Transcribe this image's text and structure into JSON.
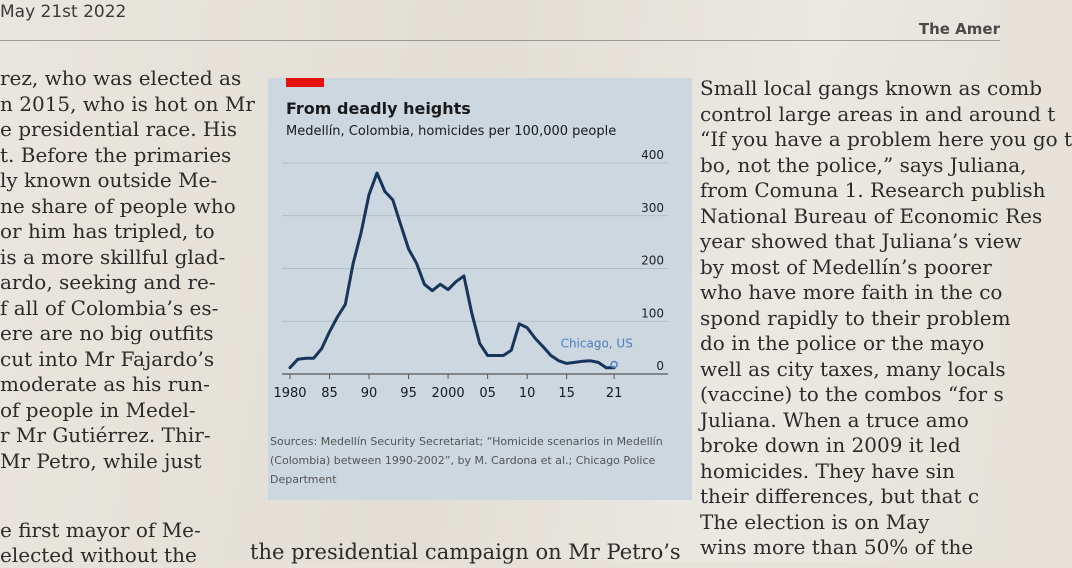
{
  "header": {
    "date": "May 21st 2022",
    "section": "The Amer"
  },
  "left_column": [
    "rez, who was elected as",
    "n 2015, who is hot on Mr",
    "e presidential race. His",
    "t. Before the primaries",
    "ly known outside Me-",
    "ne share of people who",
    "or him has tripled, to",
    "is a more skillful glad-",
    "ardo, seeking and re-",
    "f all of Colombia’s es-",
    "ere are no big outfits",
    "cut into Mr Fajardo’s",
    "moderate as his run-",
    "of people in Medel-",
    "r Mr Gutiérrez. Thir-",
    "Mr Petro, while just"
  ],
  "left_bottom": [
    "e first mayor of Me-",
    "elected without the"
  ],
  "middle_bottom": "the presidential campaign on Mr Petro’s",
  "right_column": [
    "Small local gangs known as comb",
    "control large areas in and around t",
    "“If you have a problem here you go t",
    "bo, not the police,” says Juliana,",
    "from Comuna 1. Research publish",
    "National Bureau of Economic Res",
    "year showed that Juliana’s view",
    "by most of Medellín’s poorer",
    "who have more faith in the co",
    "spond rapidly to their problem",
    "do in the police or the mayo",
    "well as city taxes, many locals",
    "(vaccine) to the combos “for s",
    "Juliana. When a truce amo",
    "broke down in 2009 it led",
    "homicides. They have sin",
    "their differences, but that c",
    "The election is on May",
    "wins more than 50% of the"
  ],
  "chart_data": {
    "type": "line",
    "title": "From deadly heights",
    "subtitle": "Medellín, Colombia, homicides per 100,000 people",
    "xlabel": "",
    "ylabel": "",
    "xlim": [
      1980,
      2022
    ],
    "ylim": [
      0,
      400
    ],
    "y_ticks": [
      0,
      100,
      200,
      300,
      400
    ],
    "x_ticks": [
      {
        "value": 1980,
        "label": "1980"
      },
      {
        "value": 1985,
        "label": "85"
      },
      {
        "value": 1990,
        "label": "90"
      },
      {
        "value": 1995,
        "label": "95"
      },
      {
        "value": 2000,
        "label": "2000"
      },
      {
        "value": 2005,
        "label": "05"
      },
      {
        "value": 2010,
        "label": "10"
      },
      {
        "value": 2015,
        "label": "15"
      },
      {
        "value": 2021,
        "label": "21"
      }
    ],
    "grid": "horizontal",
    "series": [
      {
        "name": "",
        "color": "#17345c",
        "x": [
          1980,
          1981,
          1982,
          1983,
          1984,
          1985,
          1986,
          1987,
          1988,
          1989,
          1990,
          1991,
          1992,
          1993,
          1994,
          1995,
          1996,
          1997,
          1998,
          1999,
          2000,
          2001,
          2002,
          2003,
          2004,
          2005,
          2006,
          2007,
          2008,
          2009,
          2010,
          2011,
          2012,
          2013,
          2014,
          2015,
          2016,
          2017,
          2018,
          2019,
          2020,
          2021
        ],
        "y": [
          12,
          28,
          30,
          30,
          48,
          80,
          108,
          132,
          210,
          268,
          340,
          381,
          346,
          330,
          283,
          237,
          210,
          170,
          158,
          170,
          160,
          175,
          186,
          115,
          58,
          35,
          35,
          35,
          45,
          95,
          88,
          68,
          52,
          35,
          25,
          20,
          22,
          24,
          25,
          22,
          12,
          12
        ]
      },
      {
        "name": "Chicago, US",
        "color": "#4d7fc0",
        "x": [
          2021
        ],
        "y": [
          18
        ]
      }
    ],
    "annotations": [
      {
        "text": "Chicago, US",
        "x": 2016,
        "y": 60
      }
    ],
    "source": "Sources: Medellín Security Secretariat; “Homicide scenarios in Medellín (Colombia) between 1990-2002”, by M. Cardona et al.; Chicago Police Department"
  }
}
